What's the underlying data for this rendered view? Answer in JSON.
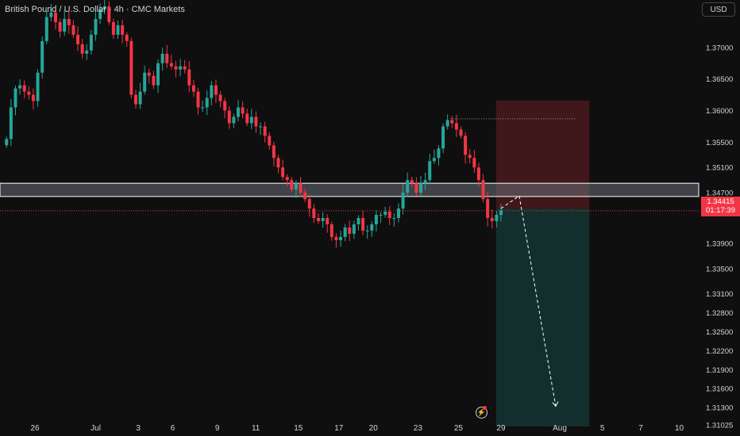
{
  "header": {
    "symbol_name": "British Pound / U.S. Dollar",
    "interval": "4h",
    "source": "CMC Markets",
    "currency_button": "USD"
  },
  "price_tag": {
    "price": "1.34415",
    "countdown": "01:17:39"
  },
  "colors": {
    "background": "#0f0f0f",
    "up": "#26a69a",
    "down": "#f23645",
    "stop_zone": "#f23645",
    "target_zone": "#26a69a"
  },
  "icons": {
    "alert": "lightning-bolt-icon"
  },
  "chart_data": {
    "type": "candlestick",
    "title": "British Pound / U.S. Dollar · 4h · CMC Markets",
    "ylim": [
      1.3085,
      1.3775
    ],
    "y_ticks": [
      "1.37000",
      "1.36500",
      "1.36000",
      "1.35500",
      "1.35100",
      "1.34700",
      "1.34415",
      "1.33900",
      "1.33500",
      "1.33100",
      "1.32800",
      "1.32500",
      "1.32200",
      "1.31900",
      "1.31600",
      "1.31300",
      "1.31025"
    ],
    "x_ticks": [
      {
        "label": "26",
        "t": 7.5
      },
      {
        "label": "Jul",
        "t": 22.5
      },
      {
        "label": "3",
        "t": 33
      },
      {
        "label": "6",
        "t": 41.5
      },
      {
        "label": "9",
        "t": 52.5
      },
      {
        "label": "11",
        "t": 62
      },
      {
        "label": "15",
        "t": 72.5
      },
      {
        "label": "17",
        "t": 82.5
      },
      {
        "label": "20",
        "t": 91
      },
      {
        "label": "23",
        "t": 102
      },
      {
        "label": "25",
        "t": 112
      },
      {
        "label": "29",
        "t": 122.5
      },
      {
        "label": "Aug",
        "t": 137
      },
      {
        "label": "5",
        "t": 147.5
      },
      {
        "label": "7",
        "t": 157
      },
      {
        "label": "10",
        "t": 166.5
      }
    ],
    "candles_close": [
      1.3555,
      1.3605,
      1.3635,
      1.364,
      1.363,
      1.3625,
      1.3615,
      1.366,
      1.371,
      1.3748,
      1.3755,
      1.374,
      1.3725,
      1.3745,
      1.3735,
      1.372,
      1.3705,
      1.369,
      1.3695,
      1.372,
      1.3745,
      1.376,
      1.3765,
      1.374,
      1.372,
      1.3735,
      1.372,
      1.371,
      1.3625,
      1.361,
      1.363,
      1.366,
      1.3655,
      1.364,
      1.3675,
      1.369,
      1.3675,
      1.367,
      1.3665,
      1.367,
      1.3665,
      1.364,
      1.363,
      1.3605,
      1.3605,
      1.362,
      1.364,
      1.3625,
      1.3615,
      1.36,
      1.358,
      1.359,
      1.3605,
      1.3595,
      1.358,
      1.359,
      1.3575,
      1.3575,
      1.356,
      1.3545,
      1.3525,
      1.351,
      1.3495,
      1.349,
      1.3475,
      1.3485,
      1.347,
      1.346,
      1.3445,
      1.343,
      1.3425,
      1.343,
      1.342,
      1.34,
      1.3395,
      1.34,
      1.3415,
      1.3405,
      1.342,
      1.343,
      1.341,
      1.341,
      1.342,
      1.3435,
      1.3435,
      1.344,
      1.343,
      1.343,
      1.3445,
      1.347,
      1.349,
      1.3485,
      1.347,
      1.3485,
      1.349,
      1.352,
      1.3525,
      1.354,
      1.3575,
      1.3585,
      1.358,
      1.357,
      1.356,
      1.353,
      1.3525,
      1.351,
      1.349,
      1.346,
      1.343,
      1.3425,
      1.3435,
      1.3442
    ],
    "annotations": {
      "support_resistance_zone": [
        1.3464,
        1.3485
      ],
      "current_price": 1.34415,
      "prior_high_dotted": 1.3587,
      "short_position": {
        "entry": 1.3445,
        "stop": 1.3616,
        "target": 1.31
      },
      "projection_path": [
        [
          122.5,
          1.3445
        ],
        [
          127,
          1.3465
        ],
        [
          136,
          1.3132
        ]
      ]
    }
  }
}
